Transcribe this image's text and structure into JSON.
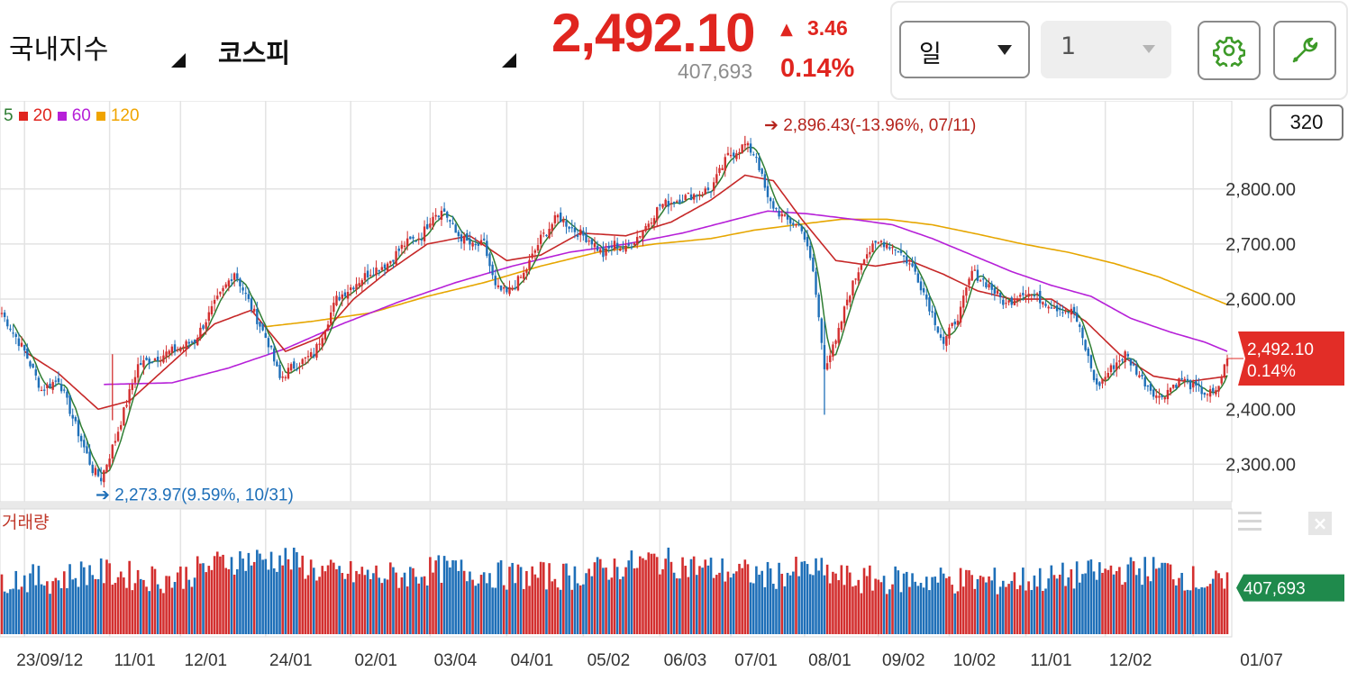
{
  "header": {
    "market_label": "국내지수",
    "index_label": "코스피",
    "price": "2,492.10",
    "change_arrow": "▲",
    "change": "3.46",
    "volume": "407,693",
    "change_pct": "0.14%"
  },
  "controls": {
    "period_value": "일",
    "count_value": "1",
    "settings_icon": "gear-icon",
    "tools_icon": "wrench-icon"
  },
  "legend": {
    "items": [
      {
        "label": "5",
        "color": "#2e7d32"
      },
      {
        "label": "20",
        "color": "#e0251f"
      },
      {
        "label": "60",
        "color": "#b620d8"
      },
      {
        "label": "120",
        "color": "#f0a400"
      }
    ]
  },
  "period_count_badge": "320",
  "volume_label": "거래량",
  "colors": {
    "up": "#d32f2f",
    "down": "#1e6fb8",
    "ma5": "#2e7d32",
    "ma20": "#c62828",
    "ma60": "#b620d8",
    "ma120": "#e6a600",
    "grid": "#e3e3e3"
  },
  "chart_data": [
    {
      "type": "candlestick",
      "y_ticks": [
        "2,800.00",
        "2,700.00",
        "2,600.00",
        "2,400.00",
        "2,300.00"
      ],
      "y_tick_values": [
        2800,
        2700,
        2600,
        2400,
        2300
      ],
      "ylim": [
        2232,
        2960
      ],
      "x_tick_labels": [
        "23/09/12",
        "11/01",
        "12/01",
        "24/01",
        "02/01",
        "03/04",
        "04/01",
        "05/02",
        "06/03",
        "07/01",
        "08/01",
        "09/02",
        "10/02",
        "11/01",
        "12/02",
        "01/07"
      ],
      "current_price_label": "2,492.10",
      "current_pct_label": "0.14%",
      "current_value": 2492.1,
      "high_annotation": "2,896.43(-13.96%, 07/11)",
      "low_annotation": "2,273.97(9.59%, 10/31)",
      "high_value": 2896.43,
      "low_value": 2273.97,
      "close_keypoints": [
        [
          0,
          2575
        ],
        [
          8,
          2505
        ],
        [
          14,
          2435
        ],
        [
          20,
          2455
        ],
        [
          26,
          2370
        ],
        [
          32,
          2290
        ],
        [
          35,
          2274
        ],
        [
          40,
          2345
        ],
        [
          48,
          2480
        ],
        [
          55,
          2495
        ],
        [
          62,
          2510
        ],
        [
          68,
          2525
        ],
        [
          75,
          2590
        ],
        [
          82,
          2650
        ],
        [
          88,
          2585
        ],
        [
          94,
          2520
        ],
        [
          98,
          2455
        ],
        [
          102,
          2475
        ],
        [
          110,
          2500
        ],
        [
          118,
          2600
        ],
        [
          125,
          2630
        ],
        [
          130,
          2650
        ],
        [
          136,
          2665
        ],
        [
          142,
          2700
        ],
        [
          148,
          2715
        ],
        [
          152,
          2755
        ],
        [
          156,
          2760
        ],
        [
          160,
          2720
        ],
        [
          166,
          2695
        ],
        [
          170,
          2700
        ],
        [
          174,
          2620
        ],
        [
          178,
          2610
        ],
        [
          184,
          2645
        ],
        [
          190,
          2710
        ],
        [
          196,
          2750
        ],
        [
          202,
          2725
        ],
        [
          208,
          2705
        ],
        [
          212,
          2680
        ],
        [
          216,
          2700
        ],
        [
          220,
          2690
        ],
        [
          226,
          2725
        ],
        [
          232,
          2770
        ],
        [
          238,
          2780
        ],
        [
          244,
          2790
        ],
        [
          250,
          2800
        ],
        [
          256,
          2860
        ],
        [
          262,
          2880
        ],
        [
          266,
          2860
        ],
        [
          270,
          2780
        ],
        [
          276,
          2745
        ],
        [
          282,
          2730
        ],
        [
          286,
          2650
        ],
        [
          290,
          2480
        ],
        [
          294,
          2520
        ],
        [
          298,
          2600
        ],
        [
          304,
          2680
        ],
        [
          310,
          2705
        ],
        [
          316,
          2690
        ],
        [
          322,
          2650
        ],
        [
          326,
          2600
        ],
        [
          332,
          2520
        ],
        [
          338,
          2580
        ],
        [
          342,
          2650
        ],
        [
          348,
          2625
        ],
        [
          354,
          2590
        ],
        [
          360,
          2615
        ],
        [
          366,
          2600
        ],
        [
          372,
          2585
        ],
        [
          378,
          2575
        ],
        [
          382,
          2510
        ],
        [
          386,
          2440
        ],
        [
          392,
          2480
        ],
        [
          396,
          2500
        ],
        [
          402,
          2455
        ],
        [
          408,
          2420
        ],
        [
          412,
          2440
        ],
        [
          416,
          2455
        ],
        [
          420,
          2440
        ],
        [
          424,
          2430
        ],
        [
          428,
          2428
        ],
        [
          432,
          2492
        ]
      ],
      "ma20_keypoints": [
        [
          8,
          2505
        ],
        [
          20,
          2465
        ],
        [
          34,
          2400
        ],
        [
          45,
          2415
        ],
        [
          60,
          2485
        ],
        [
          75,
          2555
        ],
        [
          88,
          2580
        ],
        [
          100,
          2505
        ],
        [
          112,
          2530
        ],
        [
          124,
          2600
        ],
        [
          136,
          2650
        ],
        [
          150,
          2700
        ],
        [
          165,
          2715
        ],
        [
          178,
          2670
        ],
        [
          190,
          2680
        ],
        [
          204,
          2720
        ],
        [
          220,
          2715
        ],
        [
          236,
          2740
        ],
        [
          250,
          2780
        ],
        [
          262,
          2825
        ],
        [
          272,
          2815
        ],
        [
          282,
          2745
        ],
        [
          294,
          2670
        ],
        [
          308,
          2660
        ],
        [
          320,
          2670
        ],
        [
          332,
          2645
        ],
        [
          344,
          2615
        ],
        [
          356,
          2600
        ],
        [
          370,
          2600
        ],
        [
          382,
          2560
        ],
        [
          394,
          2500
        ],
        [
          406,
          2460
        ],
        [
          418,
          2450
        ],
        [
          432,
          2460
        ]
      ],
      "ma60_keypoints": [
        [
          36,
          2445
        ],
        [
          60,
          2448
        ],
        [
          80,
          2475
        ],
        [
          100,
          2510
        ],
        [
          120,
          2555
        ],
        [
          140,
          2595
        ],
        [
          160,
          2630
        ],
        [
          180,
          2660
        ],
        [
          200,
          2685
        ],
        [
          220,
          2700
        ],
        [
          240,
          2720
        ],
        [
          255,
          2740
        ],
        [
          270,
          2760
        ],
        [
          284,
          2755
        ],
        [
          300,
          2745
        ],
        [
          314,
          2735
        ],
        [
          328,
          2710
        ],
        [
          342,
          2680
        ],
        [
          356,
          2650
        ],
        [
          370,
          2625
        ],
        [
          384,
          2605
        ],
        [
          398,
          2565
        ],
        [
          412,
          2540
        ],
        [
          424,
          2522
        ],
        [
          432,
          2505
        ]
      ],
      "ma120_keypoints": [
        [
          93,
          2550
        ],
        [
          110,
          2560
        ],
        [
          130,
          2575
        ],
        [
          150,
          2605
        ],
        [
          170,
          2630
        ],
        [
          190,
          2660
        ],
        [
          210,
          2685
        ],
        [
          230,
          2700
        ],
        [
          250,
          2710
        ],
        [
          265,
          2725
        ],
        [
          280,
          2735
        ],
        [
          296,
          2745
        ],
        [
          312,
          2745
        ],
        [
          328,
          2735
        ],
        [
          344,
          2718
        ],
        [
          360,
          2700
        ],
        [
          376,
          2685
        ],
        [
          392,
          2665
        ],
        [
          408,
          2640
        ],
        [
          420,
          2615
        ],
        [
          432,
          2590
        ]
      ]
    },
    {
      "type": "bar",
      "series_name": "거래량",
      "current_volume_label": "407,693",
      "current_volume": 407693,
      "volume_keypoints": [
        [
          0,
          480
        ],
        [
          20,
          470
        ],
        [
          30,
          540
        ],
        [
          60,
          470
        ],
        [
          80,
          640
        ],
        [
          100,
          650
        ],
        [
          115,
          520
        ],
        [
          140,
          500
        ],
        [
          155,
          560
        ],
        [
          180,
          500
        ],
        [
          200,
          500
        ],
        [
          230,
          640
        ],
        [
          250,
          560
        ],
        [
          270,
          500
        ],
        [
          285,
          560
        ],
        [
          300,
          460
        ],
        [
          330,
          470
        ],
        [
          350,
          450
        ],
        [
          370,
          480
        ],
        [
          390,
          540
        ],
        [
          410,
          560
        ],
        [
          420,
          470
        ],
        [
          432,
          408
        ]
      ]
    }
  ]
}
